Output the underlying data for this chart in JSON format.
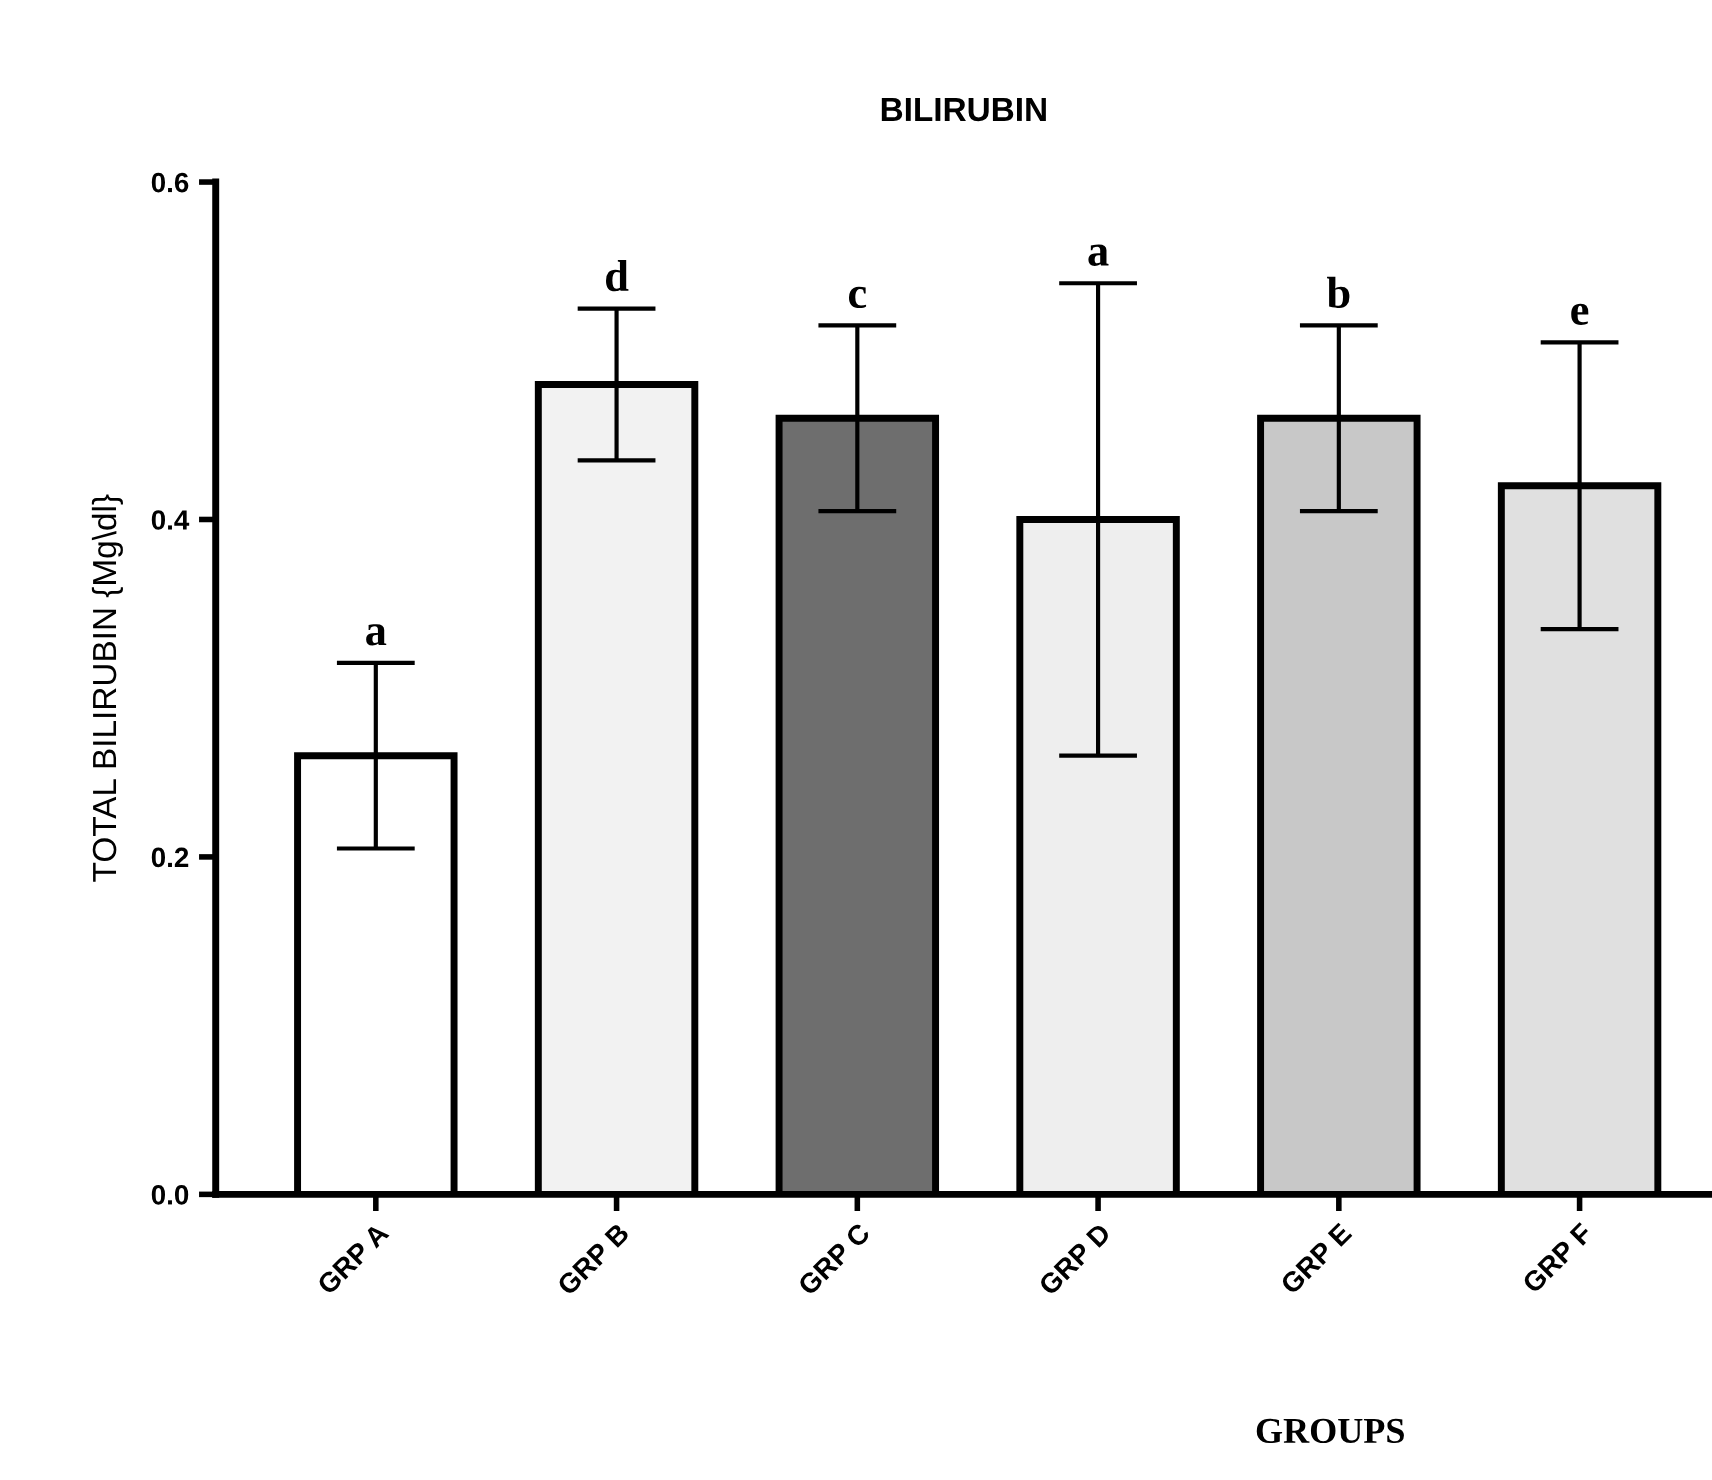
{
  "chart_data": {
    "type": "bar",
    "title": "BILIRUBIN",
    "xlabel": "GROUPS",
    "ylabel": "TOTAL BILIRUBIN {Mg\\dl}",
    "categories": [
      "GRP A",
      "GRP B",
      "GRP C",
      "GRP D",
      "GRP E",
      "GRP F"
    ],
    "values": [
      0.26,
      0.48,
      0.46,
      0.4,
      0.46,
      0.42
    ],
    "errors": [
      0.055,
      0.045,
      0.055,
      0.14,
      0.055,
      0.085
    ],
    "colors": [
      "#ffffff",
      "#f2f2f2",
      "#6e6e6e",
      "#eeeeee",
      "#c8c8c8",
      "#e0e0e0"
    ],
    "ylim": [
      0,
      0.6
    ],
    "yticks": [
      {
        "value": 0,
        "label": "0.0"
      },
      0.2,
      0.4,
      0.6
    ],
    "annotations": [
      {
        "text": "a",
        "x": "GRP A",
        "y": 0.315
      },
      {
        "text": "d",
        "x": "GRP B",
        "y": 0.525
      },
      {
        "text": "c",
        "x": "GRP C",
        "y": 0.515
      },
      {
        "text": "a",
        "x": "GRP D",
        "y": 0.54
      },
      {
        "text": "b",
        "x": "GRP E",
        "y": 0.515
      },
      {
        "text": "e",
        "x": "GRP F",
        "y": 0.505
      }
    ]
  }
}
